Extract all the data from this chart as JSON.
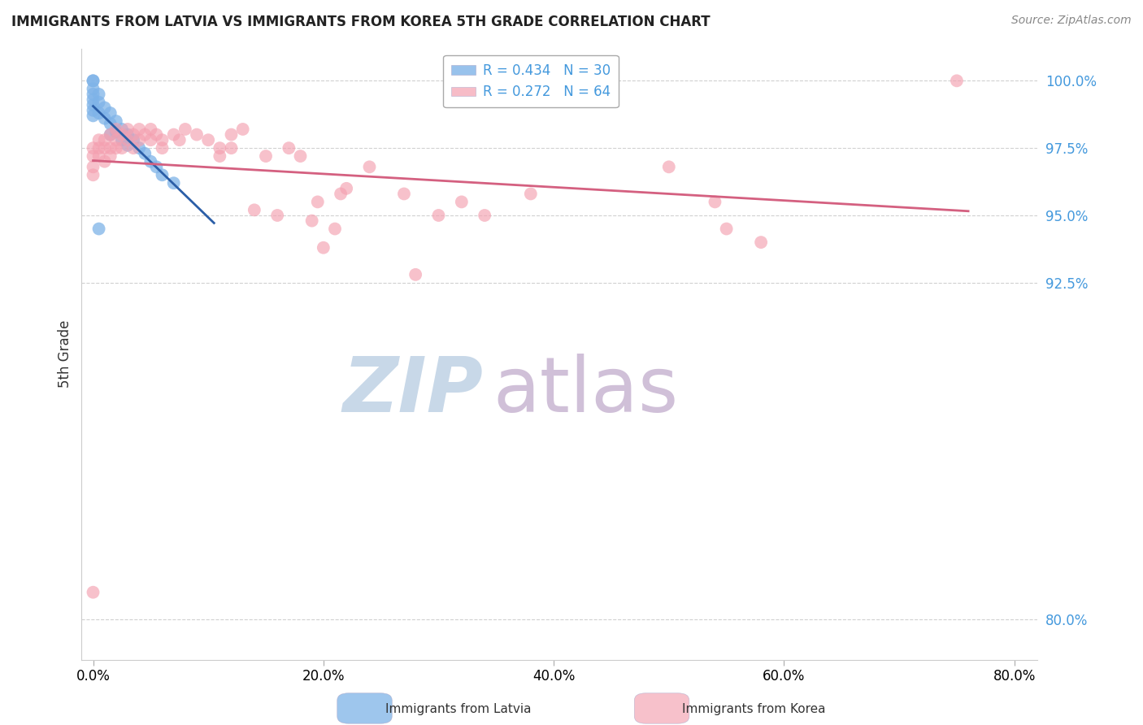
{
  "title": "IMMIGRANTS FROM LATVIA VS IMMIGRANTS FROM KOREA 5TH GRADE CORRELATION CHART",
  "source": "Source: ZipAtlas.com",
  "xlabel_label": "Immigrants from Latvia",
  "xlabel_right": "Immigrants from Korea",
  "ylabel": "5th Grade",
  "xaxis_tick_vals": [
    0.0,
    20.0,
    40.0,
    60.0,
    80.0
  ],
  "xaxis_tick_labels": [
    "0.0%",
    "20.0%",
    "40.0%",
    "60.0%",
    "80.0%"
  ],
  "yaxis_tick_vals": [
    80.0,
    92.5,
    95.0,
    97.5,
    100.0
  ],
  "yaxis_tick_labels": [
    "80.0%",
    "92.5%",
    "95.0%",
    "97.5%",
    "100.0%"
  ],
  "xlim": [
    -1.0,
    82.0
  ],
  "ylim": [
    78.5,
    101.2
  ],
  "legend_line1": "R = 0.434   N = 30",
  "legend_line2": "R = 0.272   N = 64",
  "latvia_color": "#7EB3E8",
  "korea_color": "#F4A0B0",
  "trendline_latvia_color": "#2B5EA7",
  "trendline_korea_color": "#D46080",
  "watermark_zip": "ZIP",
  "watermark_atlas": "atlas",
  "watermark_color_zip": "#C8D8E8",
  "watermark_color_atlas": "#D0C0D8",
  "latvia_points": [
    [
      0.0,
      100.0
    ],
    [
      0.0,
      100.0
    ],
    [
      0.0,
      99.7
    ],
    [
      0.0,
      99.5
    ],
    [
      0.0,
      99.3
    ],
    [
      0.0,
      99.1
    ],
    [
      0.0,
      98.9
    ],
    [
      0.0,
      98.7
    ],
    [
      0.5,
      99.5
    ],
    [
      0.5,
      99.2
    ],
    [
      0.5,
      98.8
    ],
    [
      1.0,
      99.0
    ],
    [
      1.0,
      98.6
    ],
    [
      1.5,
      98.8
    ],
    [
      1.5,
      98.4
    ],
    [
      1.5,
      98.0
    ],
    [
      2.0,
      98.5
    ],
    [
      2.0,
      98.1
    ],
    [
      2.5,
      98.2
    ],
    [
      2.5,
      97.8
    ],
    [
      3.0,
      98.0
    ],
    [
      3.0,
      97.6
    ],
    [
      3.5,
      97.8
    ],
    [
      4.0,
      97.5
    ],
    [
      4.5,
      97.3
    ],
    [
      5.0,
      97.0
    ],
    [
      5.5,
      96.8
    ],
    [
      6.0,
      96.5
    ],
    [
      7.0,
      96.2
    ],
    [
      0.5,
      94.5
    ]
  ],
  "korea_points": [
    [
      0.0,
      97.5
    ],
    [
      0.0,
      97.2
    ],
    [
      0.0,
      96.8
    ],
    [
      0.0,
      96.5
    ],
    [
      0.0,
      81.0
    ],
    [
      0.5,
      97.8
    ],
    [
      0.5,
      97.5
    ],
    [
      0.5,
      97.2
    ],
    [
      1.0,
      97.8
    ],
    [
      1.0,
      97.5
    ],
    [
      1.0,
      97.0
    ],
    [
      1.5,
      98.0
    ],
    [
      1.5,
      97.5
    ],
    [
      1.5,
      97.2
    ],
    [
      2.0,
      98.2
    ],
    [
      2.0,
      97.8
    ],
    [
      2.0,
      97.5
    ],
    [
      2.5,
      98.0
    ],
    [
      2.5,
      97.5
    ],
    [
      3.0,
      98.2
    ],
    [
      3.0,
      97.8
    ],
    [
      3.5,
      98.0
    ],
    [
      3.5,
      97.5
    ],
    [
      4.0,
      98.2
    ],
    [
      4.0,
      97.8
    ],
    [
      4.5,
      98.0
    ],
    [
      5.0,
      98.2
    ],
    [
      5.0,
      97.8
    ],
    [
      5.5,
      98.0
    ],
    [
      6.0,
      97.8
    ],
    [
      6.0,
      97.5
    ],
    [
      7.0,
      98.0
    ],
    [
      7.5,
      97.8
    ],
    [
      8.0,
      98.2
    ],
    [
      9.0,
      98.0
    ],
    [
      10.0,
      97.8
    ],
    [
      11.0,
      97.5
    ],
    [
      11.0,
      97.2
    ],
    [
      12.0,
      98.0
    ],
    [
      12.0,
      97.5
    ],
    [
      13.0,
      98.2
    ],
    [
      14.0,
      95.2
    ],
    [
      15.0,
      97.2
    ],
    [
      16.0,
      95.0
    ],
    [
      17.0,
      97.5
    ],
    [
      18.0,
      97.2
    ],
    [
      19.0,
      94.8
    ],
    [
      19.5,
      95.5
    ],
    [
      20.0,
      93.8
    ],
    [
      21.0,
      94.5
    ],
    [
      21.5,
      95.8
    ],
    [
      22.0,
      96.0
    ],
    [
      24.0,
      96.8
    ],
    [
      27.0,
      95.8
    ],
    [
      28.0,
      92.8
    ],
    [
      30.0,
      95.0
    ],
    [
      32.0,
      95.5
    ],
    [
      34.0,
      95.0
    ],
    [
      38.0,
      95.8
    ],
    [
      50.0,
      96.8
    ],
    [
      54.0,
      95.5
    ],
    [
      55.0,
      94.5
    ],
    [
      58.0,
      94.0
    ],
    [
      75.0,
      100.0
    ]
  ]
}
